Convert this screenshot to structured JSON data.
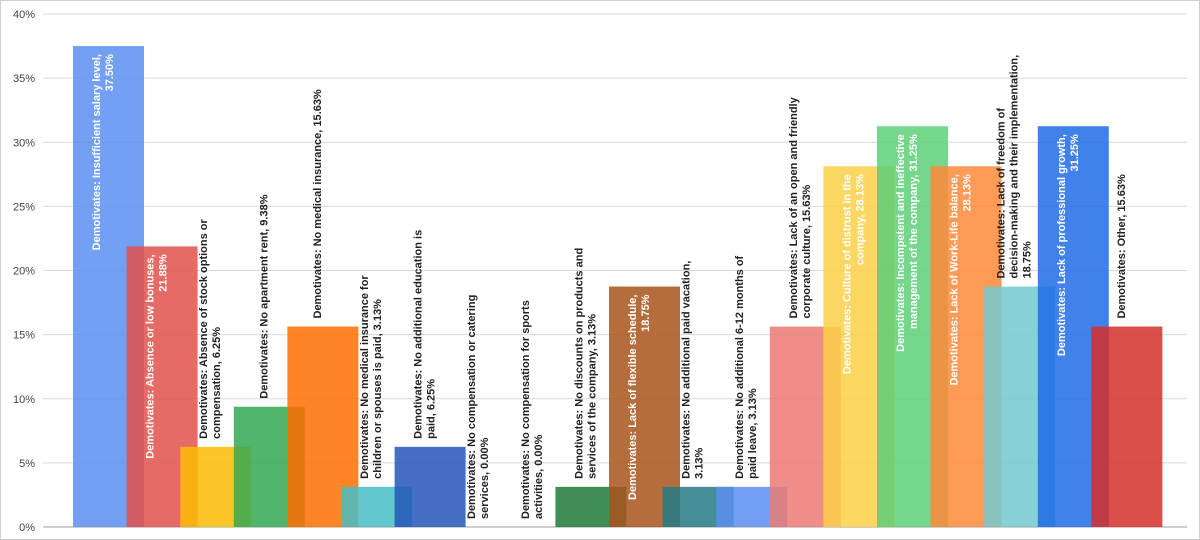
{
  "chart_data": {
    "type": "bar",
    "title": "",
    "xlabel": "",
    "ylabel": "",
    "ylim": [
      0,
      40
    ],
    "yticks": [
      "0%",
      "5%",
      "10%",
      "15%",
      "20%",
      "25%",
      "30%",
      "35%",
      "40%"
    ],
    "grid": true,
    "categories": [
      "Demotivates: Insufficient salary level, 37.50%",
      "Demotivates: Absence or low bonuses, 21.88%",
      "Demotivates: Absence of stock options or compensation, 6.25%",
      "Demotivates: No apartment rent, 9.38%",
      "Demotivates: No medical insurance, 15.63%",
      "Demotivates: No medical insurance for children or spouses is paid, 3.13%",
      "Demotivates: No additional education is paid, 6.25%",
      "Demotivates: No compensation or catering services, 0.00%",
      "Demotivates: No compensation for sports activities, 0.00%",
      "Demotivates: No discounts on products and services of the company, 3.13%",
      "Demotivates: Lack of flexible schedule, 18.75%",
      "Demotivates: No additional paid vacation, 3.13%",
      "Demotivates: No additional 6-12 months of paid leave, 3.13%",
      "Demotivates: Lack of an open and friendly corporate culture, 15.63%",
      "Demotivates: Culture of distrust in the company, 28.13%",
      "Demotivates: Incompetent and ineffective management of the company, 31.25%",
      "Demotivates: Lack of Work-Life balance, 28.13%",
      "Demotivates: Lack of freedom of decision-making and their implementation, 18.75%",
      "Demotivates: Lack of professional growth, 31.25%",
      "Demotivates: Other, 15.63%"
    ],
    "values": [
      37.5,
      21.88,
      6.25,
      9.38,
      15.63,
      3.13,
      6.25,
      0.0,
      0.0,
      3.13,
      18.75,
      3.13,
      3.13,
      15.63,
      28.13,
      31.25,
      28.13,
      18.75,
      31.25,
      15.63
    ],
    "colors": [
      "#5b8ff0",
      "#e2504a",
      "#fbbc04",
      "#34a853",
      "#ff6d01",
      "#46bdc6",
      "#2356b8",
      "#b52a22",
      "#e09a00",
      "#1e7a3a",
      "#a9531c",
      "#267a85",
      "#5b8ff0",
      "#ec7a74",
      "#fcd048",
      "#5dcf78",
      "#ff8a3a",
      "#72c9cf",
      "#1f6be6",
      "#d5302a"
    ],
    "label_inside": [
      true,
      true,
      false,
      false,
      false,
      false,
      false,
      false,
      false,
      false,
      true,
      false,
      false,
      false,
      true,
      true,
      true,
      false,
      true,
      false
    ],
    "label_color_inside": "#ffffff",
    "label_color_outside": "#222222"
  }
}
